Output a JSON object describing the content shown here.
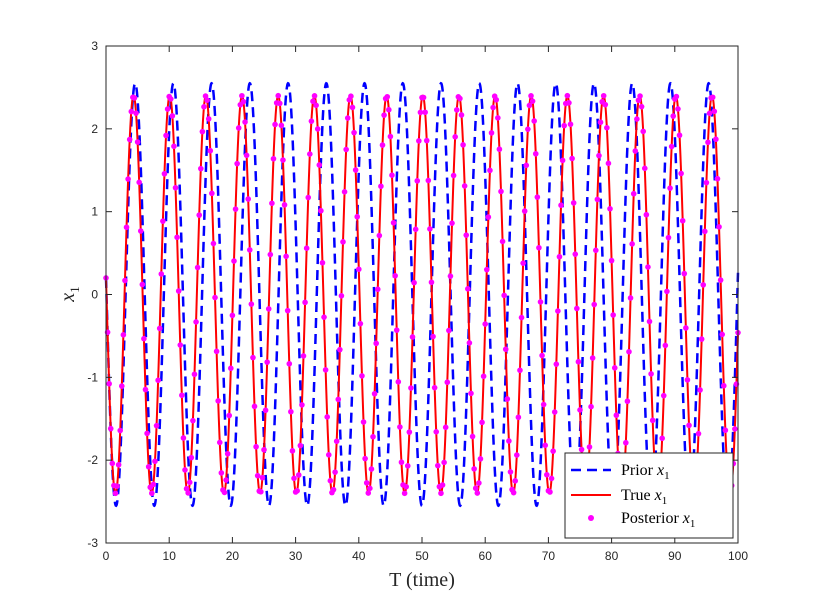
{
  "chart_data": {
    "type": "line",
    "title": "",
    "xlabel": "T (time)",
    "ylabel_main": "x",
    "ylabel_sub": "1",
    "xlim": [
      0,
      100
    ],
    "ylim": [
      -3,
      3
    ],
    "xticks": [
      0,
      10,
      20,
      30,
      40,
      50,
      60,
      70,
      80,
      90,
      100
    ],
    "yticks": [
      -3,
      -2,
      -1,
      0,
      1,
      2,
      3
    ],
    "grid": false,
    "legend_position": "bottom-right",
    "series": [
      {
        "name": "Prior x1",
        "legend_main": "Prior ",
        "legend_sub": "1",
        "style": "dashed",
        "color": "#0000ff",
        "amplitude": 2.55,
        "period": 6.05,
        "phase_value_at_0": 0.2
      },
      {
        "name": "True x1",
        "legend_main": "True ",
        "legend_sub": "1",
        "style": "solid",
        "color": "#ff0000",
        "amplitude": 2.4,
        "period": 5.72,
        "phase_value_at_0": 0.2
      },
      {
        "name": "Posterior x1",
        "legend_main": "Posterior ",
        "legend_sub": "1",
        "style": "markers",
        "color": "#ff00ff",
        "amplitude": 2.4,
        "period": 5.72,
        "phase_value_at_0": 0.2,
        "sample_step": 0.25
      }
    ]
  }
}
